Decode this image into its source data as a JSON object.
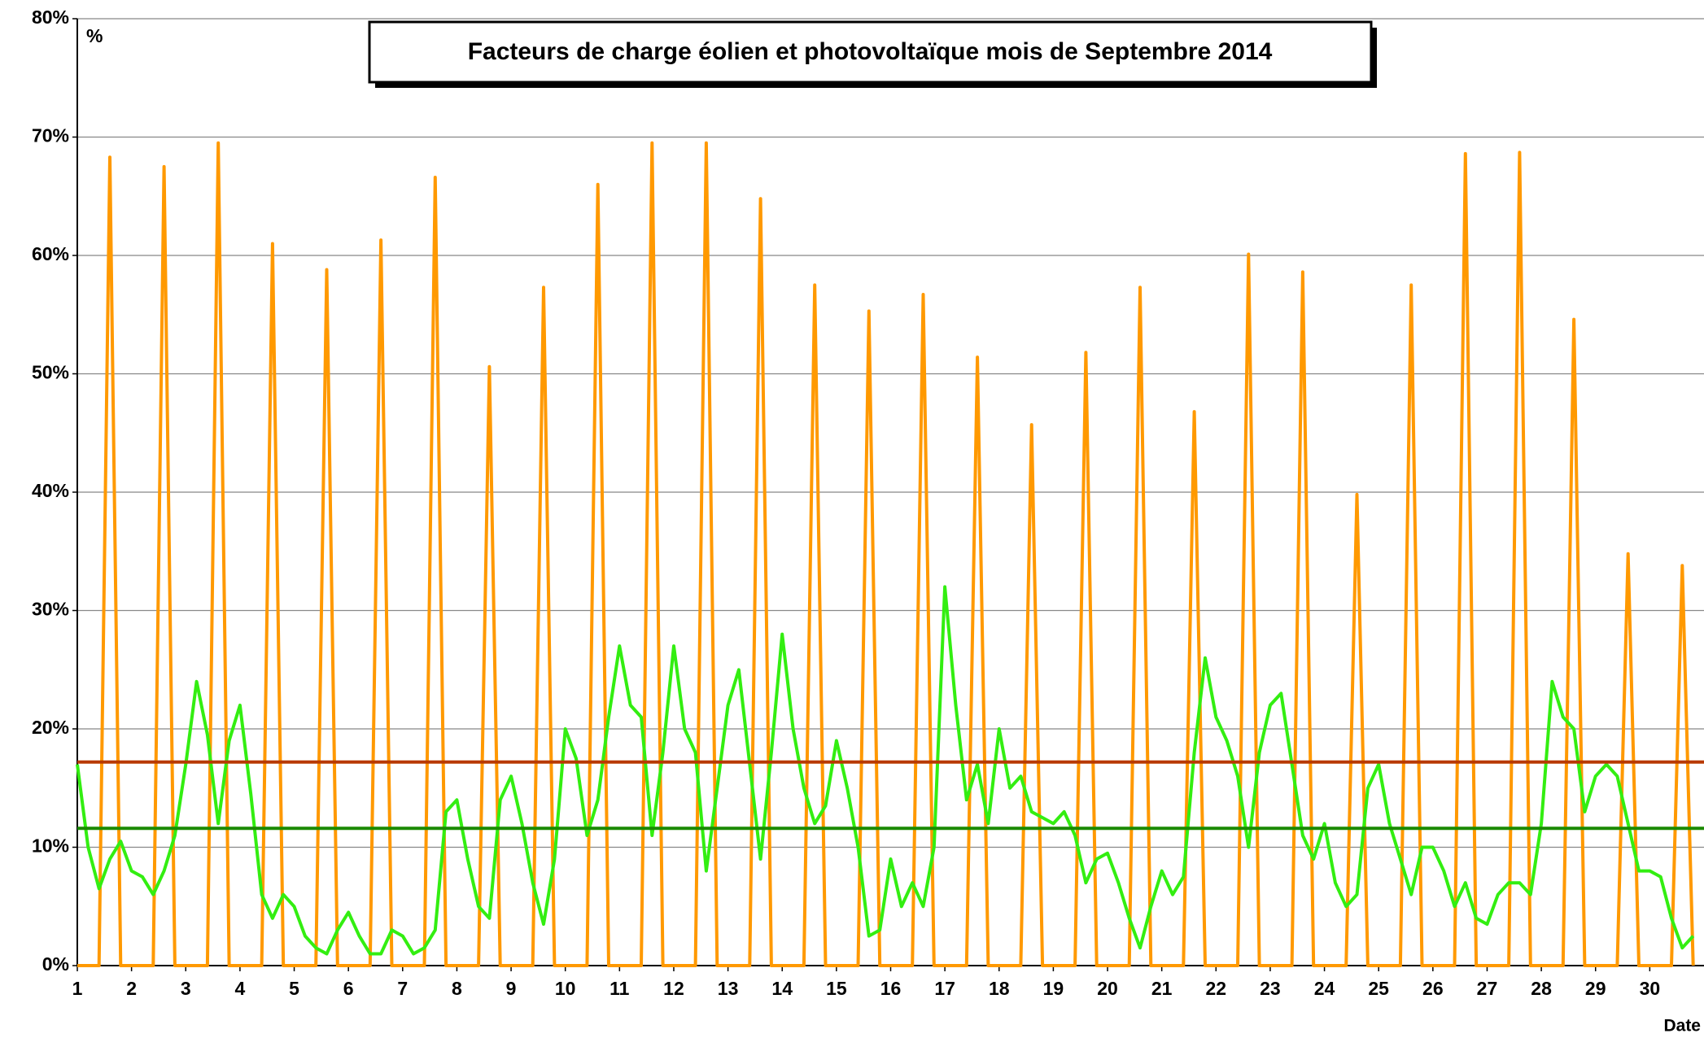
{
  "chart_data": {
    "type": "line",
    "title": "Facteurs de charge éolien et photovoltaïque mois de Septembre 2014",
    "ylabel": "%",
    "xlabel": "Date",
    "x": [
      1,
      1.2,
      1.4,
      1.6,
      1.8,
      2,
      2.2,
      2.4,
      2.6,
      2.8,
      3,
      3.2,
      3.4,
      3.6,
      3.8,
      4,
      4.2,
      4.4,
      4.6,
      4.8,
      5,
      5.2,
      5.4,
      5.6,
      5.8,
      6,
      6.2,
      6.4,
      6.6,
      6.8,
      7,
      7.2,
      7.4,
      7.6,
      7.8,
      8,
      8.2,
      8.4,
      8.6,
      8.8,
      9,
      9.2,
      9.4,
      9.6,
      9.8,
      10,
      10.2,
      10.4,
      10.6,
      10.8,
      11,
      11.2,
      11.4,
      11.6,
      11.8,
      12,
      12.2,
      12.4,
      12.6,
      12.8,
      13,
      13.2,
      13.4,
      13.6,
      13.8,
      14,
      14.2,
      14.4,
      14.6,
      14.8,
      15,
      15.2,
      15.4,
      15.6,
      15.8,
      16,
      16.2,
      16.4,
      16.6,
      16.8,
      17,
      17.2,
      17.4,
      17.6,
      17.8,
      18,
      18.2,
      18.4,
      18.6,
      18.8,
      19,
      19.2,
      19.4,
      19.6,
      19.8,
      20,
      20.2,
      20.4,
      20.6,
      20.8,
      21,
      21.2,
      21.4,
      21.6,
      21.8,
      22,
      22.2,
      22.4,
      22.6,
      22.8,
      23,
      23.2,
      23.4,
      23.6,
      23.8,
      24,
      24.2,
      24.4,
      24.6,
      24.8,
      25,
      25.2,
      25.4,
      25.6,
      25.8,
      26,
      26.2,
      26.4,
      26.6,
      26.8,
      27,
      27.2,
      27.4,
      27.6,
      27.8,
      28,
      28.2,
      28.4,
      28.6,
      28.8,
      29,
      29.2,
      29.4,
      29.6,
      29.8,
      30,
      30.2,
      30.4,
      30.6,
      30.8
    ],
    "series": [
      {
        "color": "#ff9900",
        "values": [
          0,
          0,
          0,
          68.3,
          0,
          0,
          0,
          0,
          67.5,
          0,
          0,
          0,
          0,
          69.5,
          0,
          0,
          0,
          0,
          61,
          0,
          0,
          0,
          0,
          58.8,
          0,
          0,
          0,
          0,
          61.3,
          0,
          0,
          0,
          0,
          66.6,
          0,
          0,
          0,
          0,
          50.6,
          0,
          0,
          0,
          0,
          57.3,
          0,
          0,
          0,
          0,
          66,
          0,
          0,
          0,
          0,
          69.5,
          0,
          0,
          0,
          0,
          69.5,
          0,
          0,
          0,
          0,
          64.8,
          0,
          0,
          0,
          0,
          57.5,
          0,
          0,
          0,
          0,
          55.3,
          0,
          0,
          0,
          0,
          56.7,
          0,
          0,
          0,
          0,
          51.4,
          0,
          0,
          0,
          0,
          45.7,
          0,
          0,
          0,
          0,
          51.8,
          0,
          0,
          0,
          0,
          57.3,
          0,
          0,
          0,
          0,
          46.8,
          0,
          0,
          0,
          0,
          60.1,
          0,
          0,
          0,
          0,
          58.6,
          0,
          0,
          0,
          0,
          39.8,
          0,
          0,
          0,
          0,
          57.5,
          0,
          0,
          0,
          0,
          68.6,
          0,
          0,
          0,
          0,
          68.7,
          0,
          0,
          0,
          0,
          54.6,
          0,
          0,
          0,
          0,
          34.8,
          0,
          0,
          0,
          0,
          33.8,
          0
        ]
      },
      {
        "color": "#33ee11",
        "values": [
          17,
          10,
          6.5,
          9,
          10.5,
          8,
          7.5,
          6,
          8,
          11,
          17,
          24,
          19.5,
          12,
          19,
          22,
          14.5,
          6,
          4,
          6,
          5,
          2.5,
          1.5,
          1,
          3,
          4.5,
          2.5,
          1,
          1,
          3,
          2.5,
          1,
          1.5,
          3,
          13,
          14,
          9,
          5,
          4,
          14,
          16,
          12,
          7,
          3.5,
          9,
          20,
          17.5,
          11,
          14,
          21,
          27,
          22,
          21,
          11,
          18,
          27,
          20,
          18,
          8,
          15,
          22,
          25,
          17,
          9,
          18,
          28,
          20,
          15,
          12,
          13.5,
          19,
          15,
          10,
          2.5,
          3,
          9,
          5,
          7,
          5,
          10,
          32,
          22,
          14,
          17,
          12,
          20,
          15,
          16,
          13,
          12.5,
          12,
          13,
          11,
          7,
          9,
          9.5,
          7,
          4,
          1.5,
          5,
          8,
          6,
          7.5,
          18,
          26,
          21,
          19,
          16,
          10,
          18,
          22,
          23,
          17,
          11,
          9,
          12,
          7,
          5,
          6,
          15,
          17,
          12,
          9,
          6,
          10,
          10,
          8,
          5,
          7,
          4,
          3.5,
          6,
          7,
          7,
          6,
          12,
          24,
          21,
          20,
          13,
          16,
          17,
          16,
          12,
          8,
          8,
          7.5,
          4,
          1.5,
          2.5
        ]
      }
    ],
    "reference_lines": [
      {
        "value": 17.2,
        "color": "#b83a00"
      },
      {
        "value": 11.6,
        "color": "#1a8a00"
      }
    ],
    "xlim": [
      1,
      31
    ],
    "xticks": [
      1,
      2,
      3,
      4,
      5,
      6,
      7,
      8,
      9,
      10,
      11,
      12,
      13,
      14,
      15,
      16,
      17,
      18,
      19,
      20,
      21,
      22,
      23,
      24,
      25,
      26,
      27,
      28,
      29,
      30
    ],
    "ylim": [
      0,
      80
    ],
    "yticks": [
      {
        "value": 0,
        "label": "0%"
      },
      {
        "value": 10,
        "label": "10%"
      },
      {
        "value": 20,
        "label": "20%"
      },
      {
        "value": 30,
        "label": "30%"
      },
      {
        "value": 40,
        "label": "40%"
      },
      {
        "value": 50,
        "label": "50%"
      },
      {
        "value": 60,
        "label": "60%"
      },
      {
        "value": 70,
        "label": "70%"
      },
      {
        "value": 80,
        "label": "80%"
      }
    ],
    "grid": true
  }
}
